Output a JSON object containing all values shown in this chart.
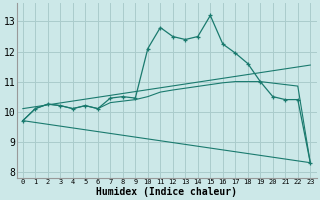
{
  "xlabel": "Humidex (Indice chaleur)",
  "xlim": [
    -0.5,
    23.5
  ],
  "ylim": [
    7.8,
    13.6
  ],
  "yticks": [
    8,
    9,
    10,
    11,
    12,
    13
  ],
  "xticks": [
    0,
    1,
    2,
    3,
    4,
    5,
    6,
    7,
    8,
    9,
    10,
    11,
    12,
    13,
    14,
    15,
    16,
    17,
    18,
    19,
    20,
    21,
    22,
    23
  ],
  "bg_color": "#cce8e8",
  "grid_color": "#aacccc",
  "line_color": "#1a7a6e",
  "y_main": [
    9.7,
    10.1,
    10.25,
    10.2,
    10.1,
    10.2,
    10.1,
    10.45,
    10.5,
    10.45,
    12.1,
    12.8,
    12.5,
    12.4,
    12.5,
    13.2,
    12.25,
    11.95,
    11.6,
    11.0,
    10.5,
    10.4,
    10.4,
    8.3
  ],
  "y_curved": [
    9.7,
    10.1,
    10.25,
    10.2,
    10.1,
    10.2,
    10.1,
    10.3,
    10.35,
    10.4,
    10.5,
    10.65,
    10.72,
    10.78,
    10.84,
    10.9,
    10.96,
    11.0,
    11.0,
    11.0,
    10.95,
    10.9,
    10.85,
    8.3
  ],
  "line_diagonal_down": [
    [
      0,
      23
    ],
    [
      9.7,
      8.3
    ]
  ],
  "line_diagonal_up": [
    [
      0,
      23
    ],
    [
      10.1,
      11.55
    ]
  ]
}
